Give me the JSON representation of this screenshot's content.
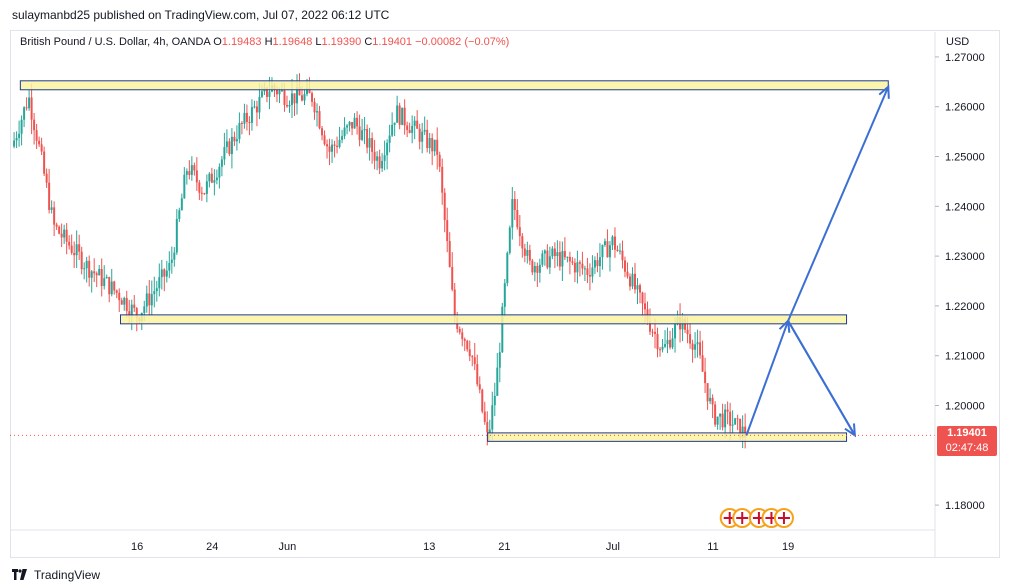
{
  "publisher_line": "sulaymanbd25 published on TradingView.com, Jul 07, 2022 06:12 UTC",
  "footer_brand": "TradingView",
  "legend": {
    "symbol": "British Pound / U.S. Dollar, 4h, OANDA",
    "o_label": "O",
    "o": "1.19483",
    "h_label": "H",
    "h": "1.19648",
    "l_label": "L",
    "l": "1.19390",
    "c_label": "C",
    "c": "1.19401",
    "change": "−0.00082 (−0.07%)"
  },
  "price_axis": {
    "currency": "USD",
    "ticks": [
      "1.27000",
      "1.26000",
      "1.25000",
      "1.24000",
      "1.23000",
      "1.22000",
      "1.21000",
      "1.20000",
      "1.18000"
    ]
  },
  "current_price": {
    "value": "1.19401",
    "countdown": "02:47:48",
    "color": "#ef5350"
  },
  "time_axis": {
    "labels": [
      "16",
      "24",
      "Jun",
      "13",
      "21",
      "Jul",
      "11",
      "19"
    ]
  },
  "colors": {
    "up": "#26a69a",
    "down": "#ef5350",
    "zone_fill": "#fbf3a0",
    "zone_border": "#1f3a93",
    "arrow": "#3b6fd4"
  },
  "chart_data": {
    "type": "candlestick",
    "title": "British Pound / U.S. Dollar, 4h, OANDA",
    "y_range": [
      1.175,
      1.275
    ],
    "price_path": [
      [
        0,
        1.252
      ],
      [
        2,
        1.262
      ],
      [
        3,
        1.254
      ],
      [
        5,
        1.236
      ],
      [
        9,
        1.228
      ],
      [
        13,
        1.222
      ],
      [
        15,
        1.218
      ],
      [
        19,
        1.228
      ],
      [
        21,
        1.248
      ],
      [
        23,
        1.243
      ],
      [
        27,
        1.255
      ],
      [
        31,
        1.264
      ],
      [
        33,
        1.262
      ],
      [
        36,
        1.262
      ],
      [
        38,
        1.251
      ],
      [
        41,
        1.257
      ],
      [
        44,
        1.249
      ],
      [
        46,
        1.259
      ],
      [
        51,
        1.251
      ],
      [
        53,
        1.218
      ],
      [
        55,
        1.211
      ],
      [
        57,
        1.193
      ],
      [
        58,
        1.204
      ],
      [
        60,
        1.241
      ],
      [
        62,
        1.228
      ],
      [
        65,
        1.23
      ],
      [
        69,
        1.227
      ],
      [
        72,
        1.233
      ],
      [
        74,
        1.226
      ],
      [
        76,
        1.218
      ],
      [
        78,
        1.211
      ],
      [
        80,
        1.217
      ],
      [
        82,
        1.212
      ],
      [
        84,
        1.198
      ],
      [
        86,
        1.197
      ],
      [
        88,
        1.194
      ]
    ],
    "zones": [
      {
        "name": "resistance-zone",
        "x_start": 1,
        "x_end": 105,
        "y_low": 1.2634,
        "y_high": 1.2652
      },
      {
        "name": "middle-zone",
        "x_start": 13,
        "x_end": 100,
        "y_low": 1.2164,
        "y_high": 1.2182
      },
      {
        "name": "support-zone",
        "x_start": 57,
        "x_end": 100,
        "y_low": 1.1928,
        "y_high": 1.1945
      }
    ],
    "projection_path": [
      [
        88,
        1.194
      ],
      [
        93,
        1.217
      ],
      [
        101,
        1.194
      ],
      [
        93,
        1.217
      ],
      [
        105,
        1.264
      ]
    ]
  }
}
